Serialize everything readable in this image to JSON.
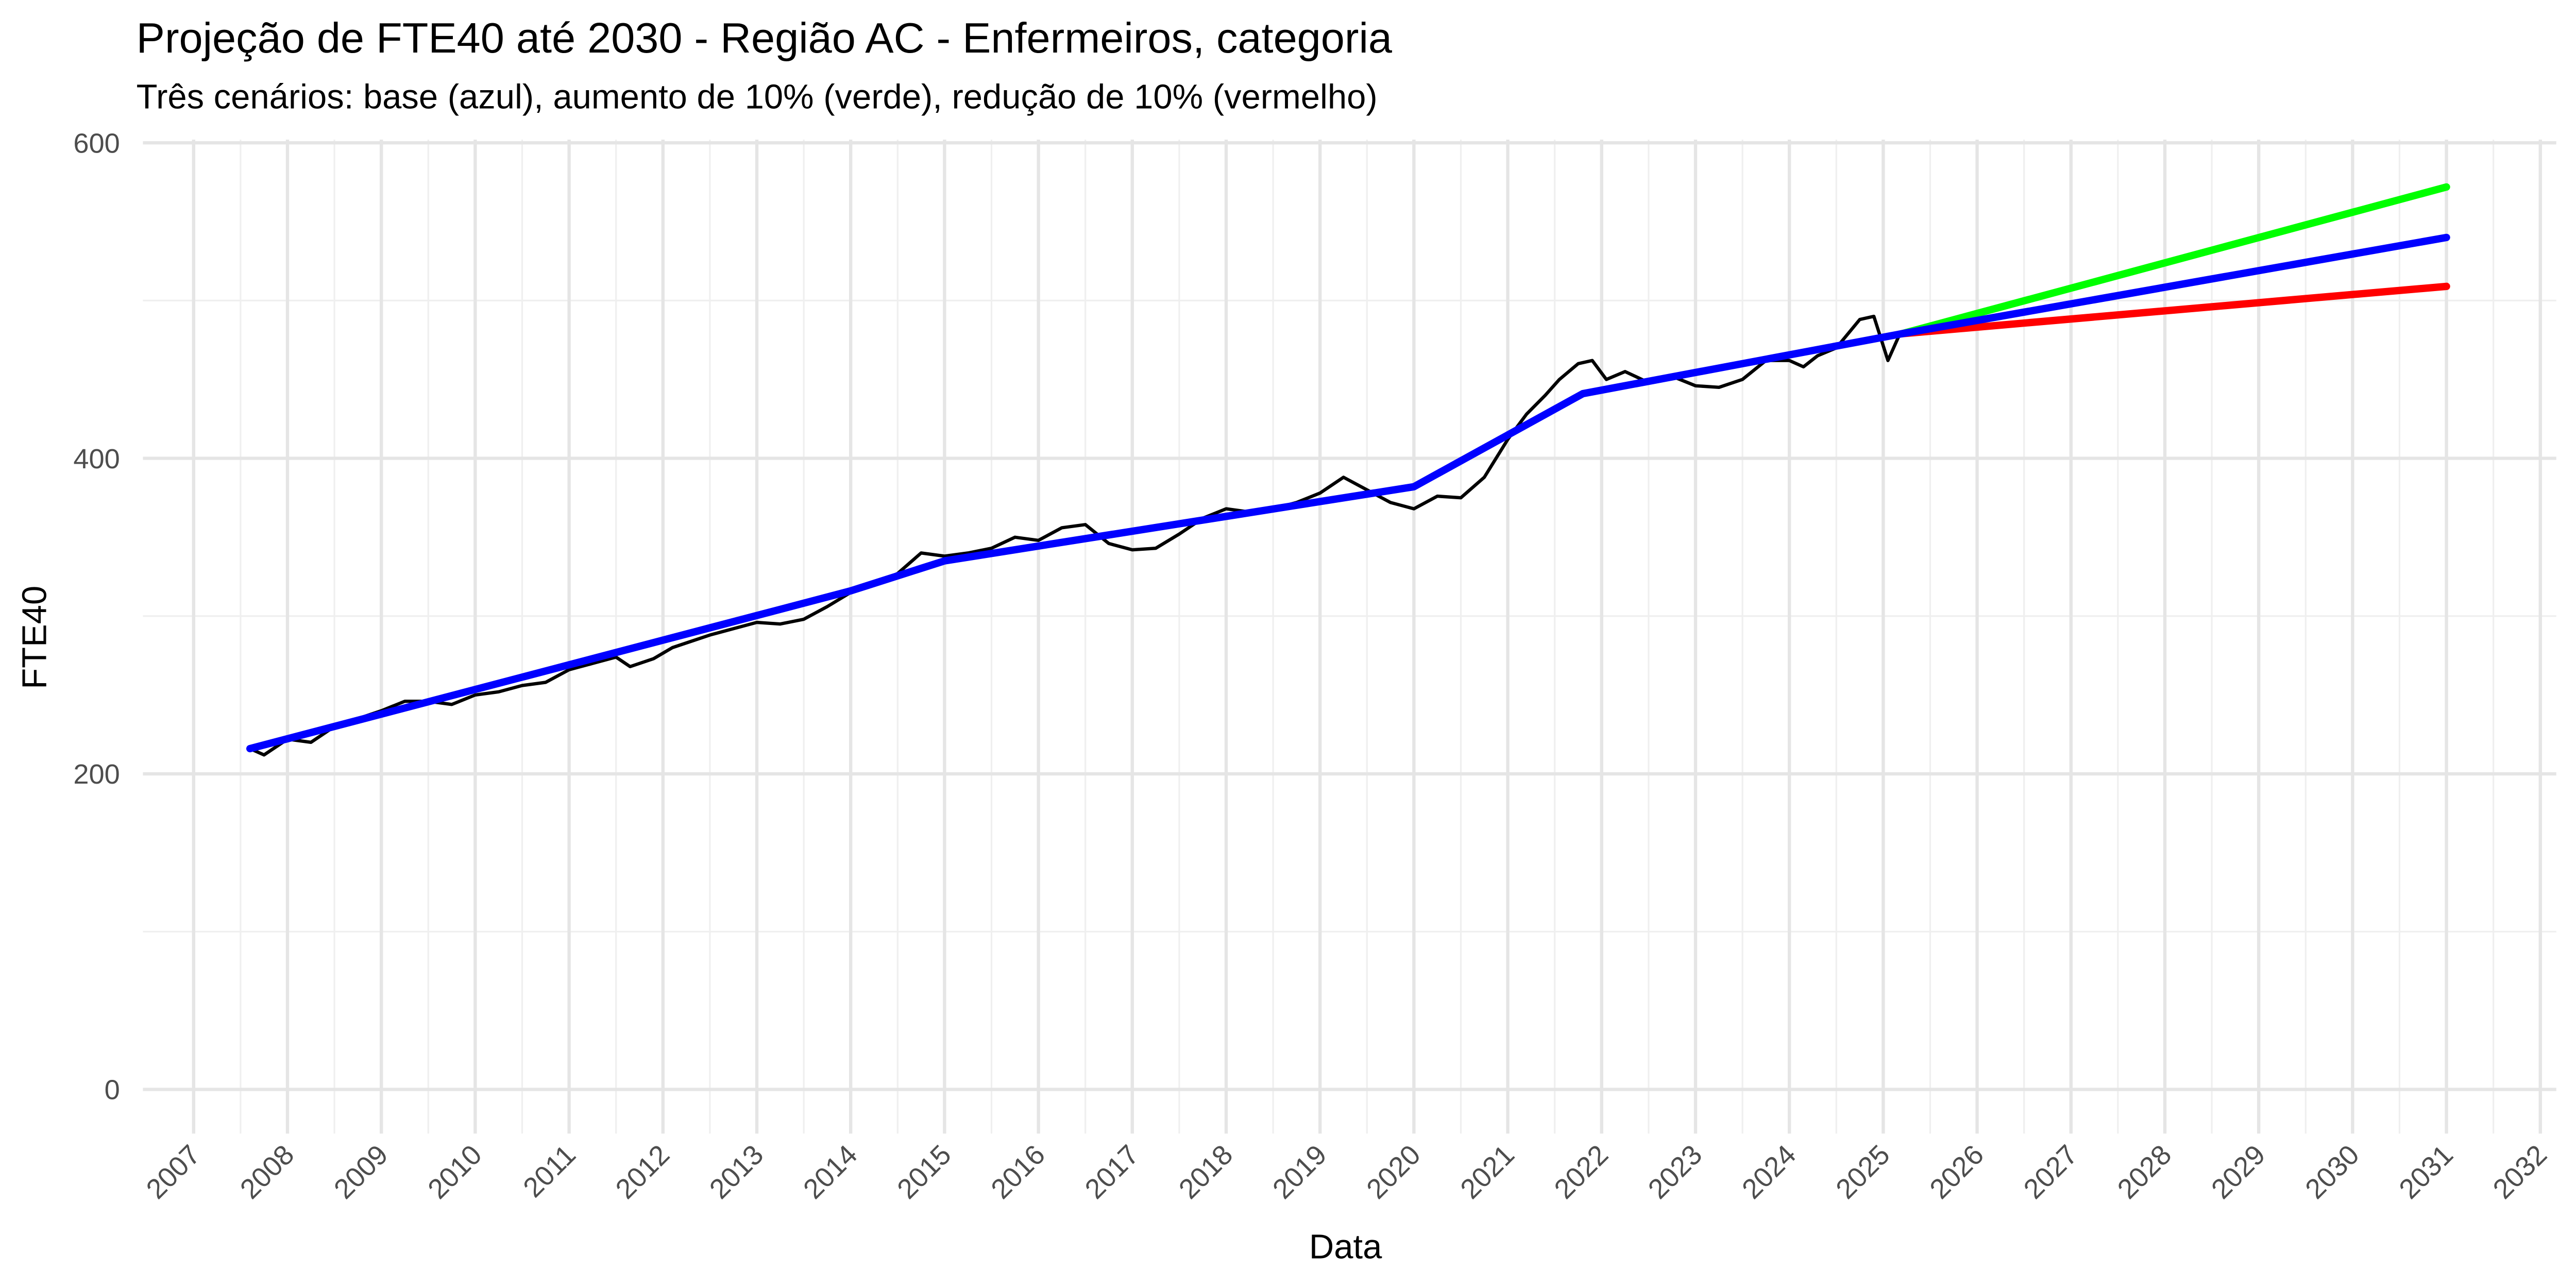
{
  "chart_data": {
    "type": "line",
    "title": "Projeção de FTE40 até 2030 - Região AC - Enfermeiros, categoria",
    "subtitle": "Três cenários: base (azul), aumento de 10% (verde), redução de 10% (vermelho)",
    "x_label": "Data",
    "y_label": "FTE40",
    "xlim": [
      2006.46,
      2032.17
    ],
    "xticks": [
      2007,
      2008,
      2009,
      2010,
      2011,
      2012,
      2013,
      2014,
      2015,
      2016,
      2017,
      2018,
      2019,
      2020,
      2021,
      2022,
      2023,
      2024,
      2025,
      2026,
      2027,
      2028,
      2029,
      2030,
      2031,
      2032
    ],
    "ylim": [
      -28,
      602
    ],
    "yticks": [
      0,
      200,
      400,
      600
    ],
    "grid": true,
    "series": [
      {
        "color": "#000000",
        "x": [
          2007.6,
          2007.75,
          2008,
          2008.25,
          2008.5,
          2008.75,
          2009,
          2009.25,
          2009.5,
          2009.75,
          2010,
          2010.25,
          2010.5,
          2010.75,
          2011,
          2011.25,
          2011.5,
          2011.65,
          2011.9,
          2012.1,
          2012.3,
          2012.5,
          2012.75,
          2013,
          2013.25,
          2013.5,
          2013.75,
          2014,
          2014.25,
          2014.5,
          2014.75,
          2015,
          2015.25,
          2015.5,
          2015.75,
          2016,
          2016.25,
          2016.5,
          2016.75,
          2017,
          2017.25,
          2017.5,
          2017.75,
          2018,
          2018.25,
          2018.5,
          2018.75,
          2019,
          2019.25,
          2019.5,
          2019.75,
          2020,
          2020.25,
          2020.5,
          2020.75,
          2021,
          2021.2,
          2021.4,
          2021.55,
          2021.75,
          2021.9,
          2022.05,
          2022.25,
          2022.5,
          2022.75,
          2023,
          2023.25,
          2023.5,
          2023.75,
          2024,
          2024.15,
          2024.3,
          2024.5,
          2024.75,
          2024.9,
          2025.05,
          2025.17
        ],
        "values": [
          216,
          212,
          222,
          220,
          230,
          235,
          240,
          246,
          246,
          244,
          250,
          252,
          256,
          258,
          266,
          270,
          274,
          268,
          273,
          280,
          284,
          288,
          292,
          296,
          295,
          298,
          306,
          315,
          320,
          327,
          340,
          338,
          340,
          343,
          350,
          348,
          356,
          358,
          346,
          342,
          343,
          352,
          362,
          368,
          366,
          368,
          372,
          378,
          388,
          380,
          372,
          368,
          376,
          375,
          388,
          412,
          428,
          440,
          450,
          460,
          462,
          450,
          455,
          448,
          452,
          446,
          445,
          450,
          462,
          462,
          458,
          465,
          470,
          488,
          490,
          462,
          478
        ]
      },
      {
        "color": "#00ff00",
        "x": [
          2025.2,
          2031
        ],
        "values": [
          479,
          572
        ]
      },
      {
        "color": "#ff0000",
        "x": [
          2025.2,
          2031
        ],
        "values": [
          479,
          509
        ]
      },
      {
        "color": "#0000ff",
        "x": [
          2007.6,
          2014,
          2015,
          2020,
          2021.8,
          2025.2,
          2031
        ],
        "values": [
          216,
          316,
          335,
          382,
          441,
          479,
          540
        ]
      }
    ]
  }
}
